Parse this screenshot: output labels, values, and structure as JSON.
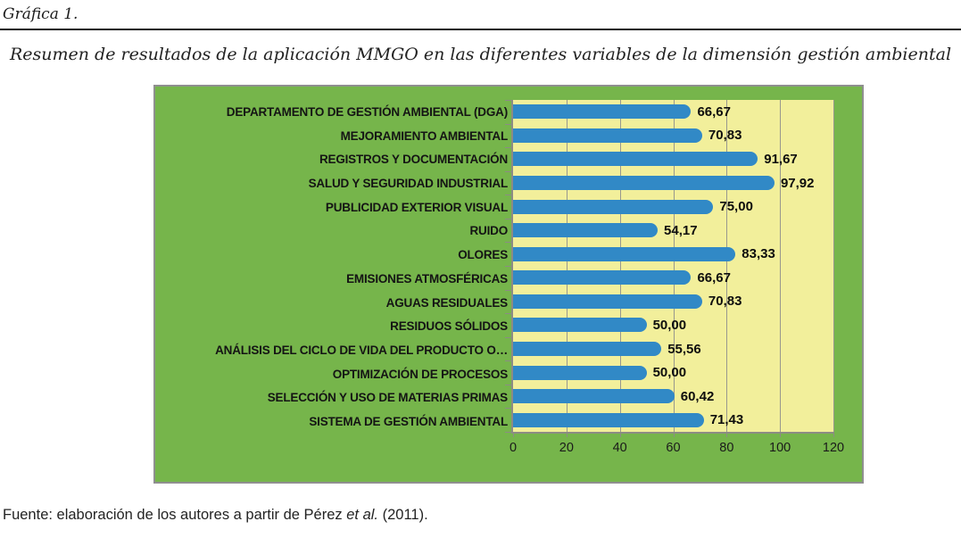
{
  "figure": {
    "label": "Gráfica 1.",
    "caption": "Resumen de resultados de la aplicación MMGO en las diferentes variables de la dimensión gestión ambiental",
    "source_prefix": "Fuente: elaboración de los autores a partir de Pérez ",
    "source_italic": "et al.",
    "source_suffix": " (2011)."
  },
  "chart_data": {
    "type": "bar",
    "orientation": "horizontal",
    "title": "",
    "xlabel": "",
    "ylabel": "",
    "xlim": [
      0,
      120
    ],
    "x_ticks": [
      "0",
      "20",
      "40",
      "60",
      "80",
      "100",
      "120"
    ],
    "grid": true,
    "legend": false,
    "categories": [
      "DEPARTAMENTO DE GESTIÓN AMBIENTAL (DGA)",
      "MEJORAMIENTO AMBIENTAL",
      "REGISTROS Y DOCUMENTACIÓN",
      "SALUD Y SEGURIDAD INDUSTRIAL",
      "PUBLICIDAD EXTERIOR VISUAL",
      "RUIDO",
      "OLORES",
      "EMISIONES ATMOSFÉRICAS",
      "AGUAS RESIDUALES",
      "RESIDUOS SÓLIDOS",
      "ANÁLISIS DEL CICLO DE VIDA DEL PRODUCTO O…",
      "OPTIMIZACIÓN DE PROCESOS",
      "SELECCIÓN Y USO DE MATERIAS PRIMAS",
      "SISTEMA DE GESTIÓN AMBIENTAL"
    ],
    "values": [
      66.67,
      70.83,
      91.67,
      97.92,
      75.0,
      54.17,
      83.33,
      66.67,
      70.83,
      50.0,
      55.56,
      50.0,
      60.42,
      71.43
    ],
    "value_labels": [
      "66,67",
      "70,83",
      "91,67",
      "97,92",
      "75,00",
      "54,17",
      "83,33",
      "66,67",
      "70,83",
      "50,00",
      "55,56",
      "50,00",
      "60,42",
      "71,43"
    ],
    "colors": {
      "chart_background": "#76B54B",
      "plot_background": "#F2EF9B",
      "bar": "#3189C6",
      "gridline": "#98988E",
      "axis": "#8C8C84",
      "text": "#141414"
    }
  }
}
